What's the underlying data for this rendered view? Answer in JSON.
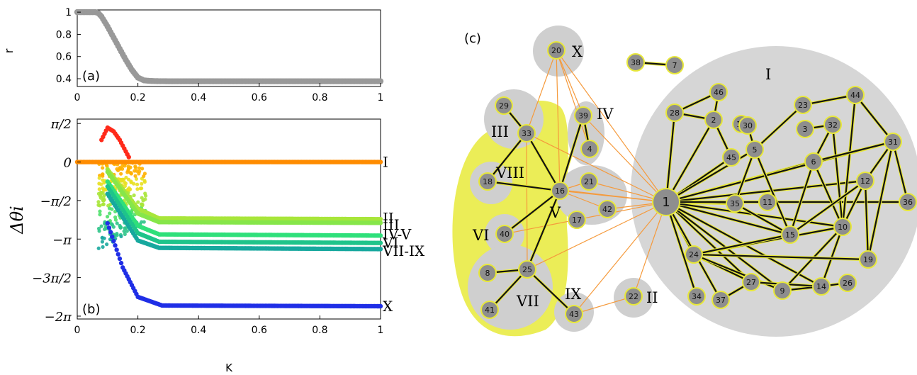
{
  "panel_a": {
    "label": "(a)",
    "ylabel": "r",
    "xticks": [
      "0",
      "0.2",
      "0.4",
      "0.6",
      "0.8",
      "1"
    ],
    "yticks": [
      "1",
      "0.8",
      "0.6",
      "0.4"
    ]
  },
  "panel_b": {
    "label": "(b)",
    "ylabel": "Δθi",
    "xlabel": "K",
    "xticks": [
      "0",
      "0.2",
      "0.4",
      "0.6",
      "0.8",
      "1"
    ],
    "yticks": [
      "π/2",
      "0",
      "−π/2",
      "−π",
      "−3π/2",
      "−2π"
    ],
    "cluster_labels": [
      "I",
      "II",
      "III",
      "IV-V",
      "VI",
      "VII-IX",
      "X"
    ]
  },
  "panel_c": {
    "label": "(c)",
    "hub_node": "1"
  },
  "chart_data": [
    {
      "type": "scatter",
      "panel": "(a)",
      "xlabel": "",
      "ylabel": "r",
      "xlim": [
        0,
        1
      ],
      "ylim": [
        0.33,
        1.02
      ],
      "series": [
        {
          "color": "#999999",
          "x": [
            0,
            0.02,
            0.04,
            0.06,
            0.07,
            0.08,
            0.1,
            0.12,
            0.14,
            0.16,
            0.18,
            0.2,
            0.22,
            0.24,
            0.26,
            0.3,
            0.4,
            0.5,
            0.6,
            0.7,
            0.8,
            0.9,
            1.0
          ],
          "y": [
            1.0,
            1.0,
            1.0,
            1.0,
            0.99,
            0.96,
            0.87,
            0.77,
            0.67,
            0.57,
            0.48,
            0.41,
            0.385,
            0.38,
            0.378,
            0.377,
            0.377,
            0.377,
            0.377,
            0.377,
            0.377,
            0.377,
            0.377
          ]
        }
      ]
    },
    {
      "type": "scatter",
      "panel": "(b)",
      "xlabel": "K",
      "ylabel": "Δθi",
      "xlim": [
        0,
        1
      ],
      "ylim": [
        -6.4,
        1.75
      ],
      "series": [
        {
          "name": "I",
          "color": "#ff8c00",
          "final_value": 0.0,
          "curve": [
            [
              0,
              0
            ],
            [
              0.3,
              0
            ],
            [
              1,
              0
            ]
          ]
        },
        {
          "name": "II",
          "color": "#a8e63a",
          "final_value": -2.33,
          "curve": [
            [
              0.1,
              -0.3
            ],
            [
              0.2,
              -1.9
            ],
            [
              0.27,
              -2.3
            ],
            [
              1,
              -2.33
            ]
          ]
        },
        {
          "name": "III",
          "color": "#86e64a",
          "final_value": -2.48,
          "curve": [
            [
              0.1,
              -0.4
            ],
            [
              0.2,
              -2.1
            ],
            [
              0.27,
              -2.45
            ],
            [
              1,
              -2.48
            ]
          ]
        },
        {
          "name": "IV-V",
          "color": "#2fe07a",
          "final_value": -3.0,
          "curve": [
            [
              0.1,
              -0.8
            ],
            [
              0.2,
              -2.6
            ],
            [
              0.27,
              -2.95
            ],
            [
              1,
              -3.0
            ]
          ]
        },
        {
          "name": "VI",
          "color": "#1fc48a",
          "final_value": -3.3,
          "curve": [
            [
              0.1,
              -1.0
            ],
            [
              0.2,
              -2.9
            ],
            [
              0.27,
              -3.25
            ],
            [
              1,
              -3.3
            ]
          ]
        },
        {
          "name": "VII-IX",
          "color": "#17a89e",
          "final_value": -3.55,
          "curve": [
            [
              0.1,
              -1.3
            ],
            [
              0.2,
              -3.2
            ],
            [
              0.27,
              -3.5
            ],
            [
              1,
              -3.55
            ]
          ]
        },
        {
          "name": "X",
          "color": "#1f2ee6",
          "final_value": -5.88,
          "curve": [
            [
              0.1,
              -2.5
            ],
            [
              0.15,
              -4.3
            ],
            [
              0.2,
              -5.5
            ],
            [
              0.28,
              -5.85
            ],
            [
              1,
              -5.88
            ]
          ]
        },
        {
          "name": "",
          "color": "#ff2a1a",
          "curve": [
            [
              0.08,
              0.9
            ],
            [
              0.1,
              1.4
            ],
            [
              0.12,
              1.25
            ],
            [
              0.14,
              0.9
            ],
            [
              0.17,
              0.2
            ]
          ]
        }
      ]
    }
  ],
  "network": {
    "clusters": [
      {
        "name": "I",
        "nodes": [
          "1",
          "2",
          "3",
          "5",
          "6",
          "9",
          "10",
          "11",
          "12",
          "13",
          "14",
          "15",
          "19",
          "23",
          "24",
          "26",
          "27",
          "28",
          "30",
          "31",
          "32",
          "34",
          "35",
          "36",
          "37",
          "44",
          "45",
          "46"
        ]
      },
      {
        "name": "II",
        "nodes": [
          "22"
        ]
      },
      {
        "name": "III",
        "nodes": [
          "29",
          "33"
        ]
      },
      {
        "name": "IV",
        "nodes": [
          "39",
          "4"
        ]
      },
      {
        "name": "V",
        "nodes": [
          "16",
          "21",
          "42",
          "17"
        ]
      },
      {
        "name": "VI",
        "nodes": [
          "40"
        ]
      },
      {
        "name": "VII",
        "nodes": [
          "8",
          "25",
          "41"
        ]
      },
      {
        "name": "VIII",
        "nodes": [
          "18"
        ]
      },
      {
        "name": "IX",
        "nodes": [
          "43"
        ]
      },
      {
        "name": "X",
        "nodes": [
          "20"
        ]
      }
    ],
    "isolated_pair": [
      "38",
      "7"
    ]
  }
}
